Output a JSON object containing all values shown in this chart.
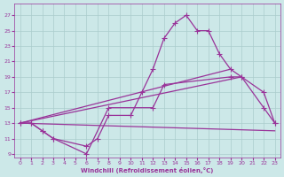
{
  "xlabel": "Windchill (Refroidissement éolien,°C)",
  "bg_color": "#cce8e8",
  "grid_color": "#aacccc",
  "line_color": "#993399",
  "xlim": [
    -0.5,
    23.5
  ],
  "ylim": [
    8.5,
    28.5
  ],
  "xticks": [
    0,
    1,
    2,
    3,
    4,
    5,
    6,
    7,
    8,
    9,
    10,
    11,
    12,
    13,
    14,
    15,
    16,
    17,
    18,
    19,
    20,
    21,
    22,
    23
  ],
  "yticks": [
    9,
    11,
    13,
    15,
    17,
    19,
    21,
    23,
    25,
    27
  ],
  "curve1_x": [
    0,
    1,
    2,
    3,
    6,
    7,
    8,
    10,
    11,
    12,
    13,
    14,
    15,
    16,
    17,
    18,
    19,
    20,
    22,
    23
  ],
  "curve1_y": [
    13,
    13,
    12,
    11,
    10,
    11,
    14,
    14,
    17,
    20,
    24,
    26,
    27,
    25,
    25,
    22,
    20,
    19,
    17,
    13
  ],
  "curve2_x": [
    0,
    1,
    2,
    3,
    6,
    8,
    12,
    13,
    19,
    20,
    22,
    23
  ],
  "curve2_y": [
    13,
    13,
    12,
    11,
    9,
    15,
    15,
    18,
    19,
    19,
    15,
    13
  ],
  "line1_x": [
    0,
    19
  ],
  "line1_y": [
    13,
    20
  ],
  "line2_x": [
    0,
    20
  ],
  "line2_y": [
    13,
    19
  ],
  "line3_x": [
    0,
    23
  ],
  "line3_y": [
    13,
    12
  ]
}
